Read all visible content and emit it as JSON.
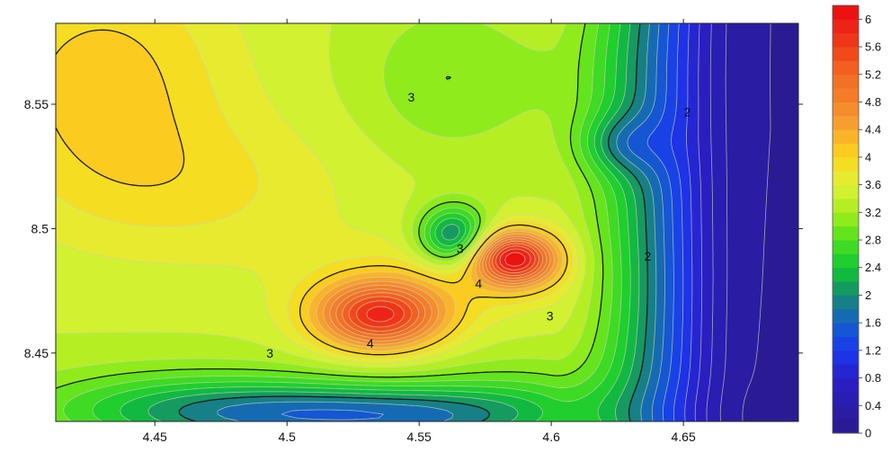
{
  "chart_data": {
    "type": "contour",
    "title": "",
    "xlabel": "",
    "ylabel": "",
    "xlim": [
      4.4125,
      4.6935
    ],
    "ylim": [
      8.4225,
      8.5825
    ],
    "x_ticks": [
      {
        "value": 4.45,
        "label": "4.45"
      },
      {
        "value": 4.5,
        "label": "4.5"
      },
      {
        "value": 4.55,
        "label": "4.55"
      },
      {
        "value": 4.6,
        "label": "4.6"
      },
      {
        "value": 4.65,
        "label": "4.65"
      }
    ],
    "y_ticks": [
      {
        "value": 8.45,
        "label": "8.45"
      },
      {
        "value": 8.5,
        "label": "8.5"
      },
      {
        "value": 8.55,
        "label": "8.55"
      }
    ],
    "contour_interval": 0.2,
    "labeled_levels": [
      2,
      3,
      4
    ],
    "contour_labels": [
      {
        "text": "3",
        "x": 4.547,
        "y": 8.5525
      },
      {
        "text": "2",
        "x": 4.6515,
        "y": 8.5465
      },
      {
        "text": "2",
        "x": 4.6365,
        "y": 8.4885
      },
      {
        "text": "3",
        "x": 4.5655,
        "y": 8.4915
      },
      {
        "text": "4",
        "x": 4.5725,
        "y": 8.4775
      },
      {
        "text": "3",
        "x": 4.5995,
        "y": 8.4645
      },
      {
        "text": "3",
        "x": 4.4935,
        "y": 8.4495
      },
      {
        "text": "4",
        "x": 4.5315,
        "y": 8.4535
      }
    ],
    "features": [
      {
        "kind": "peak",
        "x": 4.586,
        "y": 8.488,
        "value": 6
      },
      {
        "kind": "peak",
        "x": 4.535,
        "y": 8.465,
        "value": 5.4
      },
      {
        "kind": "trough",
        "x": 4.563,
        "y": 8.497,
        "value": 1.5
      },
      {
        "kind": "trough",
        "x": 4.626,
        "y": 8.534,
        "value": 1.8
      },
      {
        "kind": "plateau",
        "x": 4.432,
        "y": 8.555,
        "value": 4
      }
    ],
    "colorbar": {
      "min": 0,
      "max": 6.2,
      "step": 0.2,
      "tick_labels": [
        "0",
        "0.4",
        "0.8",
        "1.2",
        "1.6",
        "2",
        "2.4",
        "2.8",
        "3.2",
        "3.6",
        "4",
        "4.4",
        "4.8",
        "5.2",
        "5.6",
        "6"
      ],
      "stops": [
        {
          "value": 0,
          "color": "#2a1a8c"
        },
        {
          "value": 0.8,
          "color": "#2a1ec8"
        },
        {
          "value": 1.2,
          "color": "#1a38f0"
        },
        {
          "value": 1.6,
          "color": "#1460c8"
        },
        {
          "value": 2,
          "color": "#168a70"
        },
        {
          "value": 2.4,
          "color": "#10c832"
        },
        {
          "value": 2.8,
          "color": "#4ee01e"
        },
        {
          "value": 3.2,
          "color": "#a6ee1c"
        },
        {
          "value": 3.6,
          "color": "#e0f236"
        },
        {
          "value": 4,
          "color": "#fcd61c"
        },
        {
          "value": 4.4,
          "color": "#f8a82e"
        },
        {
          "value": 4.8,
          "color": "#f4842c"
        },
        {
          "value": 5.2,
          "color": "#f26a22"
        },
        {
          "value": 5.6,
          "color": "#ef4018"
        },
        {
          "value": 6,
          "color": "#ee1a18"
        },
        {
          "value": 6.2,
          "color": "#e80a0a"
        }
      ]
    },
    "colors": {
      "labeled_contour": "#1a1a1a",
      "minor_contour": "#c9d4b8",
      "axis": "#222222"
    },
    "grid": false,
    "legend_placement": "right colorbar"
  }
}
